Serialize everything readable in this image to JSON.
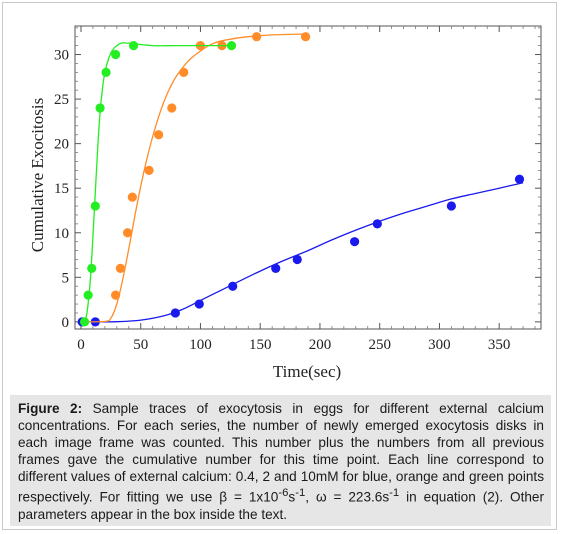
{
  "chart_data": {
    "type": "scatter",
    "xlabel": "Time(sec)",
    "ylabel": "Cumulative Exocitosis",
    "xlim": [
      -5,
      385
    ],
    "ylim": [
      -0.8,
      33.2
    ],
    "xticks": [
      0,
      50,
      100,
      150,
      200,
      250,
      300,
      350
    ],
    "yticks": [
      0,
      5,
      10,
      15,
      20,
      25,
      30
    ],
    "grid": false,
    "series": [
      {
        "color": "#1a1aee",
        "points": [
          [
            1,
            0
          ],
          [
            12,
            0
          ],
          [
            79,
            1
          ],
          [
            99,
            2
          ],
          [
            127,
            4
          ],
          [
            163,
            6
          ],
          [
            181,
            7
          ],
          [
            229,
            9
          ],
          [
            248,
            11
          ],
          [
            310,
            13
          ],
          [
            367,
            16
          ]
        ],
        "fit": [
          [
            0,
            0
          ],
          [
            30,
            0.02
          ],
          [
            50,
            0.2
          ],
          [
            70,
            0.7
          ],
          [
            85,
            1.4
          ],
          [
            100,
            2.4
          ],
          [
            115,
            3.4
          ],
          [
            130,
            4.4
          ],
          [
            150,
            5.7
          ],
          [
            170,
            6.9
          ],
          [
            190,
            8.0
          ],
          [
            210,
            9.2
          ],
          [
            230,
            10.3
          ],
          [
            250,
            11.3
          ],
          [
            270,
            12.2
          ],
          [
            290,
            13.0
          ],
          [
            310,
            13.8
          ],
          [
            330,
            14.4
          ],
          [
            350,
            15.0
          ],
          [
            370,
            15.6
          ]
        ]
      },
      {
        "color": "#ff8c28",
        "points": [
          [
            29,
            3
          ],
          [
            33,
            6
          ],
          [
            39,
            10
          ],
          [
            43,
            14
          ],
          [
            57,
            17
          ],
          [
            65,
            21
          ],
          [
            76,
            24
          ],
          [
            86,
            28
          ],
          [
            100,
            31
          ],
          [
            118,
            31
          ],
          [
            147,
            32
          ],
          [
            188,
            32
          ]
        ],
        "fit": [
          [
            0,
            0
          ],
          [
            20,
            0.05
          ],
          [
            25,
            0.4
          ],
          [
            30,
            2
          ],
          [
            35,
            4.8
          ],
          [
            40,
            8.2
          ],
          [
            45,
            11.8
          ],
          [
            50,
            15.2
          ],
          [
            55,
            18.2
          ],
          [
            60,
            20.8
          ],
          [
            65,
            23
          ],
          [
            70,
            24.9
          ],
          [
            75,
            26.4
          ],
          [
            80,
            27.6
          ],
          [
            90,
            29.3
          ],
          [
            100,
            30.4
          ],
          [
            110,
            31.2
          ],
          [
            120,
            31.6
          ],
          [
            140,
            32
          ],
          [
            160,
            32.2
          ],
          [
            188,
            32.3
          ]
        ]
      },
      {
        "color": "#22ee22",
        "points": [
          [
            3,
            0
          ],
          [
            6,
            3
          ],
          [
            9,
            6
          ],
          [
            12,
            13
          ],
          [
            16,
            24
          ],
          [
            21,
            28
          ],
          [
            29,
            30
          ],
          [
            44,
            31
          ],
          [
            126,
            31
          ]
        ],
        "fit": [
          [
            0,
            0
          ],
          [
            4,
            0.4
          ],
          [
            6,
            2
          ],
          [
            8,
            5
          ],
          [
            10,
            9.5
          ],
          [
            12,
            14.5
          ],
          [
            14,
            19.5
          ],
          [
            16,
            23.5
          ],
          [
            18,
            26.2
          ],
          [
            20,
            28
          ],
          [
            23,
            29.5
          ],
          [
            26,
            30.4
          ],
          [
            30,
            31
          ],
          [
            35,
            31.3
          ],
          [
            45,
            31.2
          ],
          [
            60,
            31
          ],
          [
            80,
            31
          ],
          [
            100,
            31
          ],
          [
            128,
            31
          ]
        ]
      }
    ]
  },
  "caption": {
    "label": "Figure 2:",
    "text": " Sample traces of exocytosis in eggs for different external calcium concentrations. For each series, the number of newly emerged exocytosis disks in each image frame was counted. This number plus the numbers from all previous frames gave the cumulative number for this time point. Each line correspond to different values of external calcium: 0.4, 2 and 10mM for blue, orange and green points respectively. For fitting we use  β = 1x10",
    "sup1": "-6",
    "text2": "s",
    "sup2": "-1",
    "text3": ", ω = 223.6s",
    "sup3": "-1",
    "text4": " in equation (2). Other parameters appear in the box inside the text."
  }
}
